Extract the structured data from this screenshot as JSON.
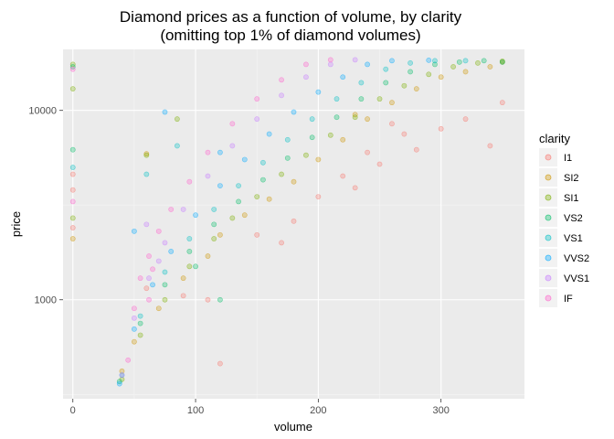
{
  "chart_data": {
    "type": "scatter",
    "title": "Diamond prices as a function of volume, by clarity",
    "subtitle": "(omitting top 1% of diamond volumes)",
    "xlabel": "volume",
    "ylabel": "price",
    "xlim": [
      -8,
      368
    ],
    "ylim": [
      300,
      21000
    ],
    "y_scale": "log10",
    "x_ticks": [
      0,
      100,
      200,
      300
    ],
    "y_ticks": [
      1000,
      10000
    ],
    "grid": true,
    "legend": {
      "title": "clarity",
      "position": "right"
    },
    "series": [
      {
        "name": "I1",
        "color": "#F8766D",
        "points": [
          [
            0,
            2400
          ],
          [
            0,
            3800
          ],
          [
            0,
            4600
          ],
          [
            60,
            1150
          ],
          [
            90,
            1050
          ],
          [
            110,
            1000
          ],
          [
            120,
            460
          ],
          [
            150,
            2200
          ],
          [
            170,
            2000
          ],
          [
            180,
            2600
          ],
          [
            200,
            3500
          ],
          [
            220,
            4500
          ],
          [
            240,
            6000
          ],
          [
            260,
            8500
          ],
          [
            280,
            6200
          ],
          [
            300,
            8000
          ],
          [
            320,
            9000
          ],
          [
            340,
            6500
          ],
          [
            350,
            11000
          ],
          [
            230,
            3900
          ],
          [
            250,
            5200
          ],
          [
            270,
            7500
          ]
        ]
      },
      {
        "name": "SI2",
        "color": "#CD9600",
        "points": [
          [
            0,
            2100
          ],
          [
            40,
            420
          ],
          [
            50,
            600
          ],
          [
            70,
            900
          ],
          [
            90,
            1300
          ],
          [
            110,
            1700
          ],
          [
            120,
            2200
          ],
          [
            140,
            2800
          ],
          [
            160,
            3400
          ],
          [
            180,
            4200
          ],
          [
            200,
            5500
          ],
          [
            220,
            7000
          ],
          [
            240,
            9000
          ],
          [
            260,
            11000
          ],
          [
            280,
            13000
          ],
          [
            300,
            15000
          ],
          [
            320,
            16000
          ],
          [
            340,
            17000
          ],
          [
            350,
            18000
          ],
          [
            60,
            5900
          ],
          [
            230,
            9500
          ]
        ]
      },
      {
        "name": "SI1",
        "color": "#7CAE00",
        "points": [
          [
            0,
            17500
          ],
          [
            0,
            13000
          ],
          [
            0,
            2700
          ],
          [
            40,
            380
          ],
          [
            55,
            650
          ],
          [
            75,
            1000
          ],
          [
            95,
            1500
          ],
          [
            115,
            2100
          ],
          [
            130,
            2700
          ],
          [
            150,
            3500
          ],
          [
            170,
            4600
          ],
          [
            190,
            5800
          ],
          [
            210,
            7400
          ],
          [
            230,
            9200
          ],
          [
            250,
            11500
          ],
          [
            270,
            13500
          ],
          [
            290,
            15500
          ],
          [
            310,
            17000
          ],
          [
            330,
            17800
          ],
          [
            350,
            18200
          ],
          [
            85,
            9000
          ],
          [
            60,
            5800
          ]
        ]
      },
      {
        "name": "VS2",
        "color": "#00BE67",
        "points": [
          [
            0,
            6200
          ],
          [
            0,
            17000
          ],
          [
            38,
            370
          ],
          [
            55,
            750
          ],
          [
            75,
            1200
          ],
          [
            95,
            1800
          ],
          [
            115,
            2500
          ],
          [
            135,
            3300
          ],
          [
            155,
            4300
          ],
          [
            175,
            5600
          ],
          [
            195,
            7200
          ],
          [
            215,
            9200
          ],
          [
            235,
            11500
          ],
          [
            255,
            14000
          ],
          [
            275,
            16000
          ],
          [
            295,
            17500
          ],
          [
            315,
            18000
          ],
          [
            335,
            18300
          ],
          [
            350,
            18000
          ],
          [
            120,
            1000
          ],
          [
            100,
            1500
          ]
        ]
      },
      {
        "name": "VS1",
        "color": "#00BFC4",
        "points": [
          [
            0,
            5000
          ],
          [
            40,
            400
          ],
          [
            55,
            820
          ],
          [
            75,
            1400
          ],
          [
            95,
            2100
          ],
          [
            115,
            3000
          ],
          [
            135,
            4000
          ],
          [
            155,
            5300
          ],
          [
            175,
            7000
          ],
          [
            195,
            9000
          ],
          [
            215,
            11500
          ],
          [
            235,
            14000
          ],
          [
            255,
            16500
          ],
          [
            275,
            17800
          ],
          [
            295,
            18300
          ],
          [
            320,
            18300
          ],
          [
            60,
            4600
          ],
          [
            85,
            6500
          ]
        ]
      },
      {
        "name": "VVS2",
        "color": "#00A9FF",
        "points": [
          [
            38,
            360
          ],
          [
            50,
            700
          ],
          [
            65,
            1200
          ],
          [
            80,
            1800
          ],
          [
            100,
            2800
          ],
          [
            120,
            4000
          ],
          [
            140,
            5500
          ],
          [
            160,
            7500
          ],
          [
            180,
            9800
          ],
          [
            200,
            12500
          ],
          [
            220,
            15000
          ],
          [
            240,
            17500
          ],
          [
            260,
            18300
          ],
          [
            290,
            18400
          ],
          [
            120,
            6000
          ],
          [
            75,
            9800
          ],
          [
            50,
            2300
          ]
        ]
      },
      {
        "name": "VVS1",
        "color": "#C77CFF",
        "points": [
          [
            40,
            400
          ],
          [
            50,
            800
          ],
          [
            62,
            1300
          ],
          [
            75,
            2000
          ],
          [
            90,
            3000
          ],
          [
            110,
            4500
          ],
          [
            130,
            6500
          ],
          [
            150,
            9000
          ],
          [
            170,
            12000
          ],
          [
            190,
            15000
          ],
          [
            210,
            17500
          ],
          [
            230,
            18500
          ],
          [
            60,
            2500
          ],
          [
            70,
            1600
          ]
        ]
      },
      {
        "name": "IF",
        "color": "#FF61CC",
        "points": [
          [
            0,
            3300
          ],
          [
            0,
            16500
          ],
          [
            45,
            480
          ],
          [
            50,
            900
          ],
          [
            55,
            1300
          ],
          [
            62,
            1700
          ],
          [
            70,
            2300
          ],
          [
            80,
            3000
          ],
          [
            95,
            4200
          ],
          [
            110,
            6000
          ],
          [
            130,
            8500
          ],
          [
            150,
            11500
          ],
          [
            170,
            14500
          ],
          [
            190,
            17500
          ],
          [
            210,
            18500
          ],
          [
            62,
            1000
          ],
          [
            65,
            1450
          ]
        ]
      }
    ]
  }
}
